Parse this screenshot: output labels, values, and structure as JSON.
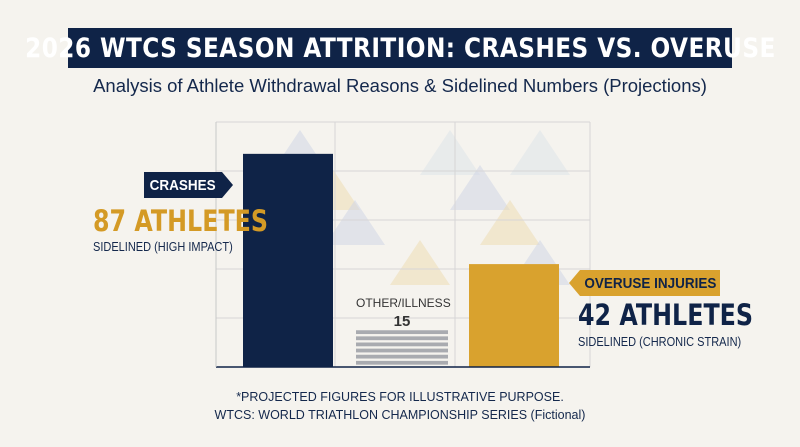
{
  "title": "2026 WTCS SEASON ATTRITION: CRASHES VS. OVERUSE",
  "subtitle": "Analysis of Athlete Withdrawal Reasons & Sidelined Numbers (Projections)",
  "callouts": {
    "crashes": {
      "tag": "CRASHES",
      "value_text": "87 ATHLETES",
      "note": "SIDELINED (HIGH IMPACT)"
    },
    "other": {
      "label": "OTHER/ILLNESS",
      "value_text": "15"
    },
    "overuse": {
      "tag": "OVERUSE INJURIES",
      "value_text": "42 ATHLETES",
      "note": "SIDELINED (CHRONIC STRAIN)"
    }
  },
  "footnotes": {
    "line1": "*PROJECTED FIGURES FOR ILLUSTRATIVE PURPOSE.",
    "line2": "WTCS: WORLD TRIATHLON CHAMPIONSHIP SERIES (Fictional)"
  },
  "colors": {
    "navy": "#0f2347",
    "gold": "#d9a22e",
    "gray": "#a9abb0",
    "background": "#f5f3ee"
  },
  "chart_data": {
    "type": "bar",
    "categories": [
      "Crashes",
      "Other/Illness",
      "Overuse Injuries"
    ],
    "values": [
      87,
      15,
      42
    ],
    "bar_colors": [
      "#0f2347",
      "#a9abb0",
      "#d9a22e"
    ],
    "ylim": [
      0,
      100
    ],
    "grid": true,
    "legend": "none"
  }
}
